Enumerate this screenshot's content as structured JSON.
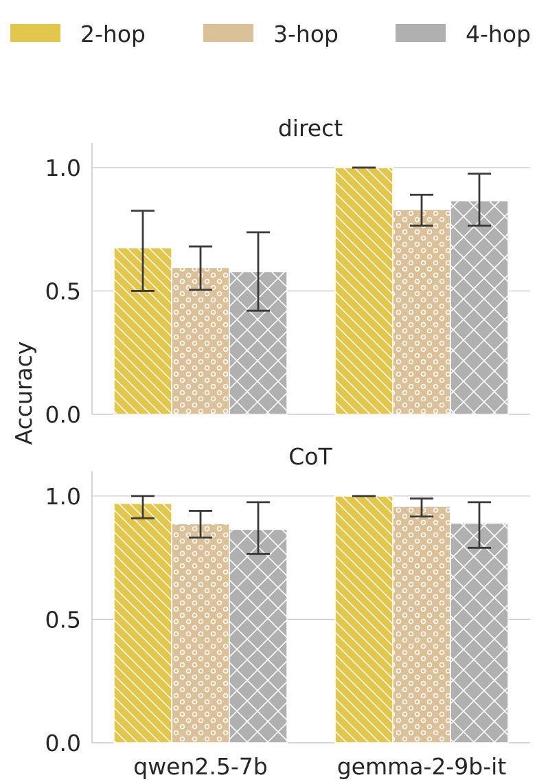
{
  "legend": [
    {
      "label": "2-hop",
      "color": "#e3c64c",
      "hatch": "diag"
    },
    {
      "label": "3-hop",
      "color": "#dbc098",
      "hatch": "circles"
    },
    {
      "label": "4-hop",
      "color": "#b0b0b0",
      "hatch": "cross"
    }
  ],
  "y_axis_label": "Accuracy",
  "chart_data": [
    {
      "type": "bar",
      "title": "direct",
      "categories": [
        "qwen2.5-7b",
        "gemma-2-9b-it"
      ],
      "ylim": [
        0,
        1.1
      ],
      "yticks": [
        "0.0",
        "0.5",
        "1.0"
      ],
      "ytick_values": [
        0.0,
        0.5,
        1.0
      ],
      "grid": true,
      "series": [
        {
          "name": "2-hop",
          "values": [
            0.675,
            1.0
          ],
          "err_low": [
            0.5,
            1.0
          ],
          "err_high": [
            0.825,
            1.0
          ]
        },
        {
          "name": "3-hop",
          "values": [
            0.595,
            0.83
          ],
          "err_low": [
            0.505,
            0.765
          ],
          "err_high": [
            0.68,
            0.89
          ]
        },
        {
          "name": "4-hop",
          "values": [
            0.578,
            0.865
          ],
          "err_low": [
            0.42,
            0.765
          ],
          "err_high": [
            0.738,
            0.975
          ]
        }
      ]
    },
    {
      "type": "bar",
      "title": "CoT",
      "categories": [
        "qwen2.5-7b",
        "gemma-2-9b-it"
      ],
      "ylim": [
        0,
        1.1
      ],
      "yticks": [
        "0.0",
        "0.5",
        "1.0"
      ],
      "ytick_values": [
        0.0,
        0.5,
        1.0
      ],
      "grid": true,
      "series": [
        {
          "name": "2-hop",
          "values": [
            0.97,
            1.0
          ],
          "err_low": [
            0.91,
            1.0
          ],
          "err_high": [
            1.0,
            1.0
          ]
        },
        {
          "name": "3-hop",
          "values": [
            0.888,
            0.958
          ],
          "err_low": [
            0.832,
            0.917
          ],
          "err_high": [
            0.94,
            0.99
          ]
        },
        {
          "name": "4-hop",
          "values": [
            0.865,
            0.89
          ],
          "err_low": [
            0.765,
            0.79
          ],
          "err_high": [
            0.975,
            0.975
          ]
        }
      ]
    }
  ]
}
